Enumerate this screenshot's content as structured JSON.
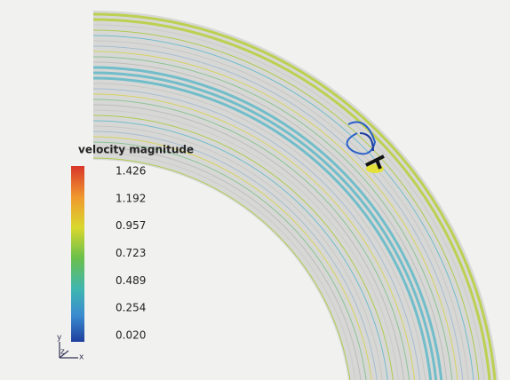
{
  "legend": {
    "title": "velocity magnitude",
    "ticks": [
      "1.426",
      "1.192",
      "0.957",
      "0.723",
      "0.489",
      "0.254",
      "0.020"
    ]
  },
  "axes": {
    "labels": [
      "y",
      "z",
      "x"
    ]
  }
}
